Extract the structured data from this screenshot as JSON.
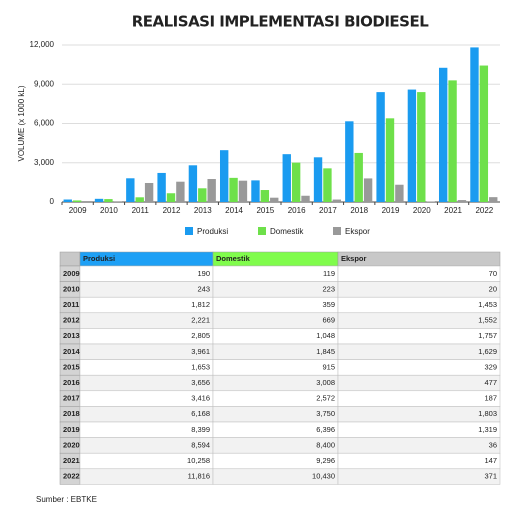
{
  "chart_data": {
    "type": "bar",
    "title": "REALISASI IMPLEMENTASI BIODIESEL",
    "ylabel": "VOLUME (x 1000 kL)",
    "categories": [
      "2009",
      "2010",
      "2011",
      "2012",
      "2013",
      "2014",
      "2015",
      "2016",
      "2017",
      "2018",
      "2019",
      "2020",
      "2021",
      "2022"
    ],
    "series": [
      {
        "name": "Produksi",
        "color": "#1a9bf0",
        "header_color": "#1ea0f5",
        "values": [
          190,
          243,
          1812,
          2221,
          2805,
          3961,
          1653,
          3656,
          3416,
          6168,
          8399,
          8594,
          10258,
          11816
        ],
        "value_labels": [
          "190",
          "243",
          "1,812",
          "2,221",
          "2,805",
          "3,961",
          "1,653",
          "3,656",
          "3,416",
          "6,168",
          "8,399",
          "8,594",
          "10,258",
          "11,816"
        ]
      },
      {
        "name": "Domestik",
        "color": "#6ee04a",
        "header_color": "#80fc4c",
        "values": [
          119,
          223,
          359,
          669,
          1048,
          1845,
          915,
          3008,
          2572,
          3750,
          6396,
          8400,
          9296,
          10430
        ],
        "value_labels": [
          "119",
          "223",
          "359",
          "669",
          "1,048",
          "1,845",
          "915",
          "3,008",
          "2,572",
          "3,750",
          "6,396",
          "8,400",
          "9,296",
          "10,430"
        ]
      },
      {
        "name": "Ekspor",
        "color": "#999999",
        "header_color": "#c8c8c8",
        "values": [
          70,
          20,
          1453,
          1552,
          1757,
          1629,
          329,
          477,
          187,
          1803,
          1319,
          36,
          147,
          371
        ],
        "value_labels": [
          "70",
          "20",
          "1,453",
          "1,552",
          "1,757",
          "1,629",
          "329",
          "477",
          "187",
          "1,803",
          "1,319",
          "36",
          "147",
          "371"
        ]
      }
    ],
    "ylim": [
      0,
      12000
    ],
    "yticks": [
      0,
      {
        "value": 3000,
        "label": "3,000"
      },
      {
        "value": 6000,
        "label": "6,000"
      },
      {
        "value": 9000,
        "label": "9,000"
      },
      {
        "value": 12000,
        "label": "12,000"
      }
    ],
    "grid": true,
    "legend": "bottom"
  },
  "source": "Sumber : EBTKE"
}
